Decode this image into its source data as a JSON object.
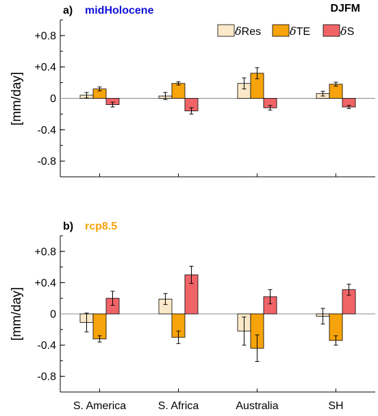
{
  "season_label": "DJFM",
  "colors": {
    "Res": "#fae8c8",
    "TE": "#f7a30b",
    "S": "#f06468"
  },
  "legend": [
    {
      "key": "Res",
      "symbol": "δ",
      "text": "Res"
    },
    {
      "key": "TE",
      "symbol": "δ",
      "text": "TE"
    },
    {
      "key": "S",
      "symbol": "δ",
      "text": "S"
    }
  ],
  "chart_data": [
    {
      "type": "bar",
      "panel_letter": "a)",
      "title": "midHolocene",
      "title_color": "#1010d8",
      "ylabel": "[mm/day]",
      "ylim": [
        -1.0,
        1.0
      ],
      "yticks": [
        -0.8,
        -0.4,
        0,
        0.4,
        0.8
      ],
      "ytick_labels": [
        "-0.8",
        "-0.4",
        "0",
        "+0.4",
        "+0.8"
      ],
      "categories": [
        "S. America",
        "S. Africa",
        "Australia",
        "SH"
      ],
      "series": [
        {
          "name": "δRes",
          "key": "Res",
          "values": [
            0.04,
            0.03,
            0.19,
            0.06
          ],
          "errors": [
            0.035,
            0.045,
            0.07,
            0.03
          ]
        },
        {
          "name": "δTE",
          "key": "TE",
          "values": [
            0.12,
            0.19,
            0.32,
            0.18
          ],
          "errors": [
            0.025,
            0.02,
            0.07,
            0.025
          ]
        },
        {
          "name": "δS",
          "key": "S",
          "values": [
            -0.08,
            -0.16,
            -0.12,
            -0.11
          ],
          "errors": [
            0.03,
            0.04,
            0.03,
            0.02
          ]
        }
      ]
    },
    {
      "type": "bar",
      "panel_letter": "b)",
      "title": "rcp8.5",
      "title_color": "#f7a30b",
      "ylabel": "[mm/day]",
      "ylim": [
        -1.0,
        1.0
      ],
      "yticks": [
        -0.8,
        -0.4,
        0,
        0.4,
        0.8
      ],
      "ytick_labels": [
        "-0.8",
        "-0.4",
        "0",
        "+0.4",
        "+0.8"
      ],
      "categories": [
        "S. America",
        "S. Africa",
        "Australia",
        "SH"
      ],
      "series": [
        {
          "name": "δRes",
          "key": "Res",
          "values": [
            -0.11,
            0.19,
            -0.22,
            -0.03
          ],
          "errors": [
            0.12,
            0.07,
            0.18,
            0.1
          ]
        },
        {
          "name": "δTE",
          "key": "TE",
          "values": [
            -0.32,
            -0.3,
            -0.44,
            -0.34
          ],
          "errors": [
            0.04,
            0.08,
            0.17,
            0.06
          ]
        },
        {
          "name": "δS",
          "key": "S",
          "values": [
            0.2,
            0.5,
            0.22,
            0.31
          ],
          "errors": [
            0.09,
            0.11,
            0.09,
            0.07
          ]
        }
      ]
    }
  ]
}
